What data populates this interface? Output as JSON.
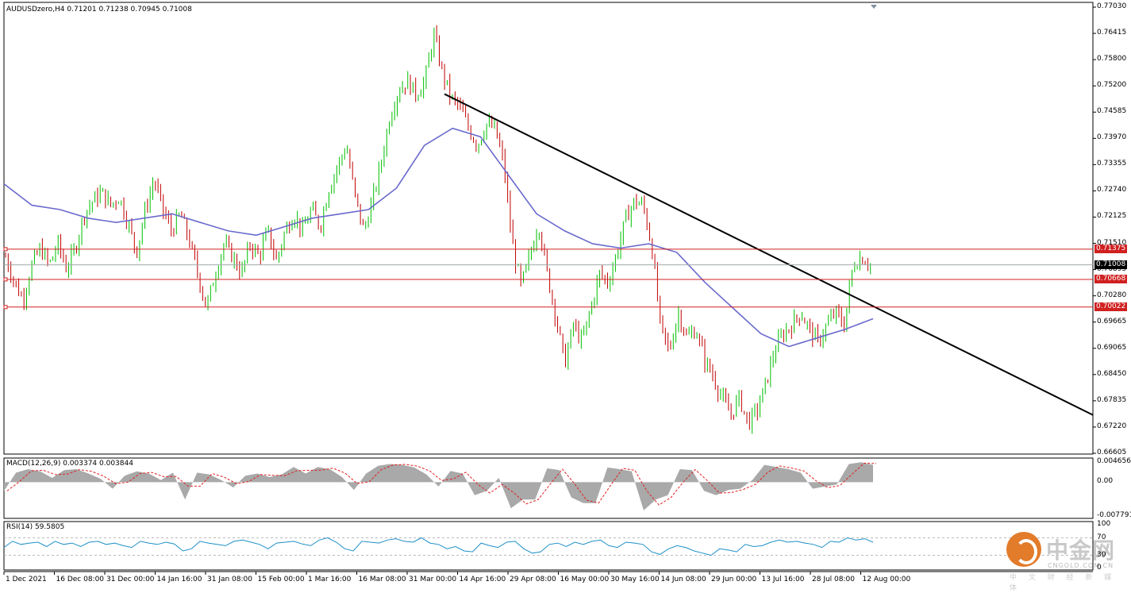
{
  "chart_data": [
    {
      "type": "candlestick",
      "title": "AUDUSDzero,H4  0.71201 0.71238 0.70945 0.71008",
      "colors": {
        "up": "#00c000",
        "down": "#c00000",
        "ma": "#6a6acd",
        "trendline": "#000000",
        "hline": "#d02020",
        "bid": "#a0a8a8",
        "bg": "#ffffff"
      },
      "y_ticks": [
        "0.77030",
        "0.76415",
        "0.75800",
        "0.75200",
        "0.74585",
        "0.73970",
        "0.73355",
        "0.72740",
        "0.72125",
        "0.71510",
        "0.70895",
        "0.70280",
        "0.69665",
        "0.69065",
        "0.68450",
        "0.67835",
        "0.67220",
        "0.66605"
      ],
      "ylim": [
        0.66605,
        0.7703
      ],
      "x_ticks": [
        "1 Dec 2021",
        "16 Dec 08:00",
        "31 Dec 00:00",
        "14 Jan 16:00",
        "31 Jan 08:00",
        "15 Feb 00:00",
        "1 Mar 16:00",
        "16 Mar 08:00",
        "31 Mar 00:00",
        "14 Apr 16:00",
        "29 Apr 08:00",
        "16 May 00:00",
        "30 May 16:00",
        "14 Jun 08:00",
        "29 Jun 00:00",
        "13 Jul 16:00",
        "28 Jul 08:00",
        "12 Aug 00:00"
      ],
      "price_path": [
        0.712,
        0.706,
        0.702,
        0.71,
        0.714,
        0.71,
        0.715,
        0.709,
        0.714,
        0.722,
        0.725,
        0.727,
        0.724,
        0.726,
        0.72,
        0.713,
        0.723,
        0.73,
        0.723,
        0.718,
        0.722,
        0.716,
        0.708,
        0.7,
        0.708,
        0.715,
        0.712,
        0.708,
        0.715,
        0.712,
        0.718,
        0.711,
        0.718,
        0.722,
        0.718,
        0.723,
        0.719,
        0.728,
        0.733,
        0.738,
        0.726,
        0.718,
        0.725,
        0.734,
        0.745,
        0.751,
        0.753,
        0.75,
        0.753,
        0.764,
        0.755,
        0.749,
        0.747,
        0.742,
        0.738,
        0.743,
        0.742,
        0.734,
        0.715,
        0.705,
        0.712,
        0.72,
        0.708,
        0.698,
        0.687,
        0.696,
        0.692,
        0.7,
        0.708,
        0.706,
        0.713,
        0.721,
        0.725,
        0.724,
        0.714,
        0.695,
        0.69,
        0.699,
        0.693,
        0.695,
        0.688,
        0.684,
        0.679,
        0.675,
        0.679,
        0.673,
        0.676,
        0.682,
        0.69,
        0.694,
        0.696,
        0.699,
        0.695,
        0.692,
        0.696,
        0.699,
        0.696,
        0.71,
        0.712,
        0.7101
      ],
      "ma_path": [
        0.729,
        0.724,
        0.723,
        0.721,
        0.72,
        0.721,
        0.722,
        0.72,
        0.718,
        0.717,
        0.719,
        0.721,
        0.722,
        0.723,
        0.728,
        0.738,
        0.742,
        0.74,
        0.731,
        0.722,
        0.718,
        0.715,
        0.714,
        0.715,
        0.713,
        0.706,
        0.7,
        0.694,
        0.691,
        0.693,
        0.695,
        0.6975
      ],
      "trendline": {
        "start": {
          "date": "3 Apr",
          "value": 0.75
        },
        "end": {
          "value": 0.675
        }
      },
      "levels": [
        {
          "label": "0.71375",
          "value": 0.71375,
          "color": "#d02020"
        },
        {
          "label": "0.71008",
          "value": 0.71008,
          "color": "#000000"
        },
        {
          "label": "0.70668",
          "value": 0.70668,
          "color": "#d02020"
        },
        {
          "label": "0.70022",
          "value": 0.70022,
          "color": "#d02020"
        }
      ]
    },
    {
      "type": "area",
      "title": "MACD(12,26,9) 0.003374 0.003844",
      "y_ticks": [
        "0.004656",
        "0.00",
        "-0.007791"
      ],
      "ylim": [
        -0.007791,
        0.004656
      ],
      "histogram_color": "#a9a9a9",
      "signal_color": "#e02020",
      "values": [
        -0.002,
        0.0022,
        0.003,
        0.0025,
        0.001,
        0.0028,
        0.003,
        0.002,
        0.0008,
        -0.0015,
        0.0015,
        0.0025,
        0.002,
        0.0005,
        0.0022,
        -0.004,
        0.0022,
        0.0018,
        0.0005,
        -0.0012,
        0.0015,
        0.002,
        0.0012,
        0.0018,
        0.0035,
        0.002,
        0.0035,
        0.003,
        0.0012,
        -0.0018,
        0.002,
        0.0038,
        0.0042,
        0.004,
        0.0034,
        0.0018,
        -0.001,
        0.0026,
        0.002,
        -0.003,
        -0.002,
        0.001,
        -0.006,
        -0.004,
        -0.004,
        0.0032,
        0.0028,
        -0.0035,
        -0.0048,
        -0.0048,
        0.0034,
        0.003,
        0.0025,
        -0.0065,
        -0.004,
        -0.003,
        0.003,
        0.0028,
        -0.002,
        -0.003,
        -0.0018,
        -0.0015,
        0.0005,
        0.004,
        0.0035,
        0.003,
        0.0022,
        -0.0015,
        -0.001,
        -0.0005,
        0.0042,
        0.0046,
        0.004
      ]
    },
    {
      "type": "line",
      "title": "RSI(14) 59.5805",
      "y_ticks": [
        "100",
        "70",
        "30",
        "0"
      ],
      "ylim": [
        0,
        100
      ],
      "line_color": "#1e90c8",
      "reference_lines": [
        70,
        30
      ],
      "values": [
        48,
        62,
        55,
        58,
        60,
        50,
        62,
        55,
        58,
        50,
        60,
        62,
        55,
        58,
        52,
        48,
        62,
        58,
        55,
        60,
        56,
        40,
        45,
        62,
        58,
        55,
        52,
        62,
        65,
        60,
        55,
        45,
        58,
        60,
        62,
        56,
        52,
        65,
        70,
        60,
        45,
        40,
        62,
        60,
        58,
        65,
        68,
        62,
        60,
        70,
        58,
        55,
        45,
        50,
        40,
        38,
        58,
        52,
        48,
        60,
        62,
        45,
        35,
        38,
        55,
        58,
        50,
        60,
        55,
        62,
        65,
        52,
        48,
        60,
        58,
        55,
        38,
        32,
        45,
        52,
        48,
        40,
        35,
        30,
        45,
        42,
        38,
        55,
        50,
        52,
        60,
        65,
        60,
        62,
        58,
        55,
        48,
        62,
        60,
        70,
        65,
        68,
        60
      ]
    }
  ],
  "watermark": {
    "title": "中金网",
    "subtitle": "CNGOLD.COM.CN",
    "tagline": "中 文 财 经 新 媒 体"
  },
  "logo_icon": "cngold-logo-icon"
}
